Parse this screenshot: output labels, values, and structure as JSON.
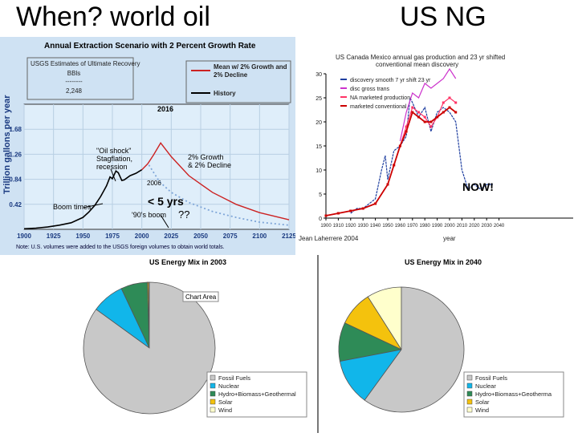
{
  "slide": {
    "title_left": "When? world oil",
    "title_right": "US NG"
  },
  "colors": {
    "mean_line": "#cc2222",
    "history_line": "#000000",
    "dotted_line": "#7fa6d8",
    "oil_bg": "#cfe2f3",
    "pie_fossil": "#c8c8c8",
    "pie_nuclear": "#11b6ea",
    "pie_hydro": "#2e8b57",
    "pie_solar": "#f4c20d",
    "pie_wind": "#ffffcc",
    "ng_discovery": "#1f3fa0",
    "ng_disc_trans": "#cc33cc",
    "ng_marketed": "#ff3366",
    "ng_conventional": "#cc0000"
  },
  "chart_data": [
    {
      "type": "line",
      "title": "Annual Extraction Scenario with 2 Percent Growth Rate",
      "ylabel": "Trillion gallons per year",
      "xlabel": "",
      "xlim": [
        1900,
        2125
      ],
      "ylim": [
        0,
        2.1
      ],
      "x_ticks": [
        "1900",
        "1925",
        "1950",
        "1975",
        "2000",
        "2025",
        "2050",
        "2075",
        "2100",
        "2125"
      ],
      "y_ticks": [
        "0.42",
        "0.84",
        "1.26",
        "1.68"
      ],
      "series": [
        {
          "name": "History",
          "x": [
            1900,
            1910,
            1920,
            1930,
            1940,
            1950,
            1955,
            1960,
            1965,
            1970,
            1973,
            1975,
            1978,
            1980,
            1983,
            1985,
            1990,
            1995,
            2000
          ],
          "y": [
            0.01,
            0.02,
            0.04,
            0.07,
            0.11,
            0.2,
            0.29,
            0.4,
            0.55,
            0.73,
            0.88,
            0.85,
            0.98,
            0.95,
            0.82,
            0.83,
            0.9,
            0.94,
            1.0
          ]
        },
        {
          "name": "Mean w/ 2% Growth and 2% Decline",
          "x": [
            2000,
            2005,
            2010,
            2016,
            2025,
            2040,
            2060,
            2080,
            2100,
            2125
          ],
          "y": [
            1.0,
            1.1,
            1.25,
            1.45,
            1.22,
            0.9,
            0.62,
            0.42,
            0.28,
            0.16
          ]
        },
        {
          "name": "",
          "x": [
            2006,
            2015,
            2025,
            2040,
            2060,
            2080,
            2100,
            2125
          ],
          "y": [
            1.08,
            0.8,
            0.62,
            0.45,
            0.3,
            0.2,
            0.12,
            0.07
          ]
        }
      ],
      "annotations": [
        "USGS Estimates of Ultimate Recovery",
        "BBls",
        "--------",
        "2,248",
        "\"Oil shock\"",
        "Stagflation,",
        "recession",
        "Boom times",
        "'90's boom",
        "2016",
        "2006",
        "2% Growth",
        "& 2% Decline",
        "??",
        "< 5 yrs"
      ],
      "note": "Note: U.S. volumes were added to the USGS foreign volumes to obtain world totals."
    },
    {
      "type": "line",
      "title": "US Canada Mexico annual gas production and 23 yr shifted conventional mean discovery",
      "xlabel": "year",
      "xlim": [
        1900,
        2100
      ],
      "ylim": [
        0,
        30
      ],
      "y_ticks": [
        "0",
        "5",
        "10",
        "15",
        "20",
        "25",
        "30"
      ],
      "x_ticks": [
        "1900",
        "1910",
        "1920",
        "1930",
        "1940",
        "1950",
        "1960",
        "1970",
        "1980",
        "1990",
        "2000",
        "2010",
        "2020",
        "2030",
        "2040"
      ],
      "legend": [
        "discovery smooth 7 yr shift 23 yr",
        "disc gross trans",
        "NA marketed production",
        "marketed conventional"
      ],
      "series": [
        {
          "name": "discovery smooth 7 yr shift 23 yr",
          "x": [
            1920,
            1925,
            1930,
            1935,
            1940,
            1945,
            1948,
            1950,
            1955,
            1960,
            1965,
            1968,
            1970,
            1975,
            1980,
            1985,
            1990,
            1995,
            2000,
            2005,
            2010,
            2015,
            2020,
            2025,
            2030,
            2035
          ],
          "y": [
            1,
            2,
            2,
            3,
            4,
            10,
            13,
            8,
            14,
            15,
            17,
            25,
            24,
            21,
            23,
            18,
            22,
            23,
            22,
            20,
            10,
            6,
            7,
            6,
            7,
            7
          ]
        },
        {
          "name": "disc gross trans",
          "x": [
            1960,
            1965,
            1970,
            1975,
            1980,
            1985,
            1990,
            1995,
            2000,
            2005
          ],
          "y": [
            16,
            22,
            26,
            25,
            28,
            27,
            28,
            29,
            31,
            29
          ]
        },
        {
          "name": "NA marketed production",
          "x": [
            1900,
            1910,
            1920,
            1930,
            1940,
            1950,
            1955,
            1960,
            1965,
            1970,
            1975,
            1980,
            1985,
            1990,
            1995,
            2000,
            2005
          ],
          "y": [
            0.5,
            1,
            1.5,
            2,
            3,
            7,
            11,
            15,
            19,
            23,
            22,
            21,
            19,
            21,
            24,
            25,
            24
          ]
        },
        {
          "name": "marketed conventional",
          "x": [
            1900,
            1910,
            1920,
            1930,
            1940,
            1950,
            1955,
            1960,
            1965,
            1970,
            1975,
            1980,
            1985,
            1990,
            1995,
            2000,
            2005
          ],
          "y": [
            0.5,
            1,
            1.5,
            2,
            3,
            7,
            11,
            15,
            18,
            22,
            21,
            20,
            20,
            21,
            22,
            23,
            22
          ]
        }
      ],
      "annotations": [
        "NOW!",
        "Jean Laherrere 2004"
      ]
    },
    {
      "type": "pie",
      "title": "US Energy Mix in 2003",
      "area_label": "Chart Area",
      "categories": [
        "Fossil Fuels",
        "Nuclear",
        "Hydro+Biomass+Geothermal",
        "Solar",
        "Wind"
      ],
      "values": [
        85,
        8,
        6.5,
        0.3,
        0.2
      ]
    },
    {
      "type": "pie",
      "title": "US Energy Mix in 2040",
      "categories": [
        "Fossil Fuels",
        "Nuclear",
        "Hydro+Biomass+Geotherma",
        "Solar",
        "Wind"
      ],
      "values": [
        60,
        12,
        10,
        9,
        9
      ]
    }
  ]
}
